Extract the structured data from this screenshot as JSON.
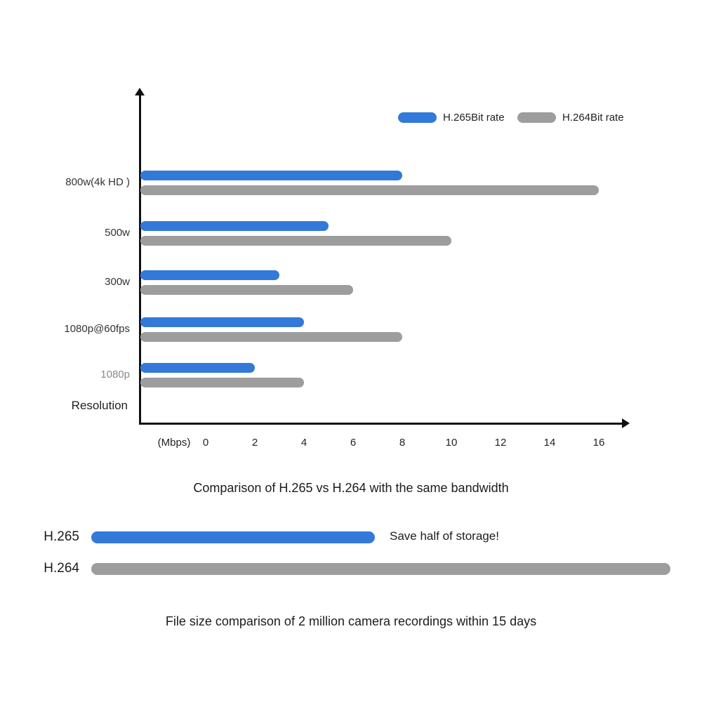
{
  "chart_data": [
    {
      "type": "bar",
      "orientation": "horizontal",
      "title": "Comparison of H.265 vs H.264 with the same bandwidth",
      "categories": [
        "800w(4k HD )",
        "500w",
        "300w",
        "1080p@60fps",
        "1080p"
      ],
      "series": [
        {
          "name": "H.265Bit rate",
          "color": "#3379d9",
          "values": [
            8,
            5,
            3,
            4,
            2
          ]
        },
        {
          "name": "H.264Bit rate",
          "color": "#9d9d9d",
          "values": [
            16,
            10,
            6,
            8,
            4
          ]
        }
      ],
      "xlabel": "(Mbps)",
      "x_ticks": [
        "0",
        "2",
        "4",
        "6",
        "8",
        "10",
        "12",
        "14",
        "16"
      ],
      "xlim": [
        0,
        16
      ],
      "ylabel": "Resolution",
      "legend_position": "top-right",
      "grid": false
    },
    {
      "type": "bar",
      "orientation": "horizontal",
      "title": "File size comparison of 2 million camera recordings within 15 days",
      "categories": [
        "H.265",
        "H.264"
      ],
      "values": [
        0.49,
        1.0
      ],
      "colors": [
        "#3379d9",
        "#9d9d9d"
      ],
      "annotation": "Save half of storage!",
      "annotation_target": "H.265",
      "xlim": [
        0,
        1
      ]
    }
  ],
  "colors": {
    "h265_blue": "#3379d9",
    "h264_gray": "#9d9d9d",
    "axis": "#111111"
  }
}
